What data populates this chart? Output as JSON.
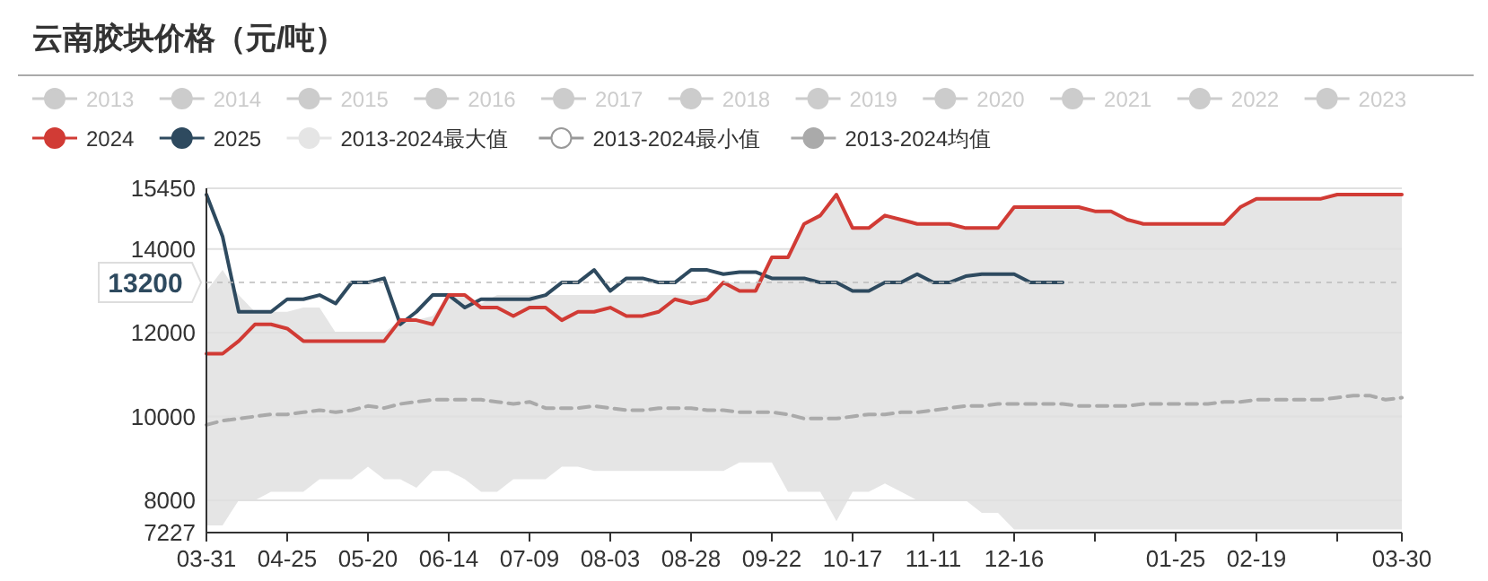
{
  "chart_data": {
    "type": "line",
    "title": "云南胶块价格（元/吨）",
    "categories": [
      "03-31",
      null,
      null,
      null,
      null,
      "04-25",
      null,
      null,
      null,
      null,
      "05-20",
      null,
      null,
      null,
      null,
      "06-14",
      null,
      null,
      null,
      null,
      "07-09",
      null,
      null,
      null,
      null,
      "08-03",
      null,
      null,
      null,
      null,
      "08-28",
      null,
      null,
      null,
      null,
      "09-22",
      null,
      null,
      null,
      null,
      "10-17",
      null,
      null,
      null,
      null,
      "11-11",
      null,
      null,
      null,
      null,
      "12-16",
      null,
      null,
      null,
      null,
      null,
      null,
      null,
      null,
      null,
      "01-25",
      null,
      null,
      null,
      null,
      "02-19",
      null,
      null,
      null,
      null,
      null,
      null,
      null,
      null,
      "03-30"
    ],
    "ylim": [
      7227,
      15450
    ],
    "yticks": [
      7227,
      8000,
      10000,
      12000,
      14000,
      15450
    ],
    "grid": "y",
    "legend": "top left",
    "series": [
      {
        "name": "2013",
        "color": "#cccccc",
        "values": [
          null,
          null,
          null,
          null,
          null,
          null,
          null,
          null,
          null,
          null,
          null,
          null,
          null,
          null,
          null,
          null,
          null,
          null,
          null,
          null,
          null,
          null,
          null,
          null,
          null,
          null,
          null,
          null,
          null,
          null,
          null,
          null,
          null,
          null,
          null,
          null,
          null,
          null,
          null,
          null,
          null,
          null,
          null,
          null,
          null,
          null,
          null,
          null,
          null,
          null,
          null,
          null,
          null,
          null,
          null,
          null,
          null,
          null,
          null,
          null,
          null,
          null,
          null,
          null,
          null,
          null,
          null,
          null,
          null,
          null,
          null,
          null,
          null,
          null,
          null
        ]
      },
      {
        "name": "2014",
        "color": "#cccccc",
        "values": [
          null,
          null,
          null,
          null,
          null,
          null,
          null,
          null,
          null,
          null,
          null,
          null,
          null,
          null,
          null,
          null,
          null,
          null,
          null,
          null,
          null,
          null,
          null,
          null,
          null,
          null,
          null,
          null,
          null,
          null,
          null,
          null,
          null,
          null,
          null,
          null,
          null,
          null,
          null,
          null,
          null,
          null,
          null,
          null,
          null,
          null,
          null,
          null,
          null,
          null,
          null,
          null,
          null,
          null,
          null,
          null,
          null,
          null,
          null,
          null,
          null,
          null,
          null,
          null,
          null,
          null,
          null,
          null,
          null,
          null,
          null,
          null,
          null,
          null,
          null
        ]
      },
      {
        "name": "2015",
        "color": "#cccccc",
        "values": [
          null,
          null,
          null,
          null,
          null,
          null,
          null,
          null,
          null,
          null,
          null,
          null,
          null,
          null,
          null,
          null,
          null,
          null,
          null,
          null,
          null,
          null,
          null,
          null,
          null,
          null,
          null,
          null,
          null,
          null,
          null,
          null,
          null,
          null,
          null,
          null,
          null,
          null,
          null,
          null,
          null,
          null,
          null,
          null,
          null,
          null,
          null,
          null,
          null,
          null,
          null,
          null,
          null,
          null,
          null,
          null,
          null,
          null,
          null,
          null,
          null,
          null,
          null,
          null,
          null,
          null,
          null,
          null,
          null,
          null,
          null,
          null,
          null,
          null,
          null
        ]
      },
      {
        "name": "2016",
        "color": "#cccccc",
        "values": [
          null,
          null,
          null,
          null,
          null,
          null,
          null,
          null,
          null,
          null,
          null,
          null,
          null,
          null,
          null,
          null,
          null,
          null,
          null,
          null,
          null,
          null,
          null,
          null,
          null,
          null,
          null,
          null,
          null,
          null,
          null,
          null,
          null,
          null,
          null,
          null,
          null,
          null,
          null,
          null,
          null,
          null,
          null,
          null,
          null,
          null,
          null,
          null,
          null,
          null,
          null,
          null,
          null,
          null,
          null,
          null,
          null,
          null,
          null,
          null,
          null,
          null,
          null,
          null,
          null,
          null,
          null,
          null,
          null,
          null,
          null,
          null,
          null,
          null,
          null
        ]
      },
      {
        "name": "2017",
        "color": "#cccccc",
        "values": [
          null,
          null,
          null,
          null,
          null,
          null,
          null,
          null,
          null,
          null,
          null,
          null,
          null,
          null,
          null,
          null,
          null,
          null,
          null,
          null,
          null,
          null,
          null,
          null,
          null,
          null,
          null,
          null,
          null,
          null,
          null,
          null,
          null,
          null,
          null,
          null,
          null,
          null,
          null,
          null,
          null,
          null,
          null,
          null,
          null,
          null,
          null,
          null,
          null,
          null,
          null,
          null,
          null,
          null,
          null,
          null,
          null,
          null,
          null,
          null,
          null,
          null,
          null,
          null,
          null,
          null,
          null,
          null,
          null,
          null,
          null,
          null,
          null,
          null,
          null
        ]
      },
      {
        "name": "2018",
        "color": "#cccccc",
        "values": [
          null,
          null,
          null,
          null,
          null,
          null,
          null,
          null,
          null,
          null,
          null,
          null,
          null,
          null,
          null,
          null,
          null,
          null,
          null,
          null,
          null,
          null,
          null,
          null,
          null,
          null,
          null,
          null,
          null,
          null,
          null,
          null,
          null,
          null,
          null,
          null,
          null,
          null,
          null,
          null,
          null,
          null,
          null,
          null,
          null,
          null,
          null,
          null,
          null,
          null,
          null,
          null,
          null,
          null,
          null,
          null,
          null,
          null,
          null,
          null,
          null,
          null,
          null,
          null,
          null,
          null,
          null,
          null,
          null,
          null,
          null,
          null,
          null,
          null,
          null
        ]
      },
      {
        "name": "2019",
        "color": "#cccccc",
        "values": [
          null,
          null,
          null,
          null,
          null,
          null,
          null,
          null,
          null,
          null,
          null,
          null,
          null,
          null,
          null,
          null,
          null,
          null,
          null,
          null,
          null,
          null,
          null,
          null,
          null,
          null,
          null,
          null,
          null,
          null,
          null,
          null,
          null,
          null,
          null,
          null,
          null,
          null,
          null,
          null,
          null,
          null,
          null,
          null,
          null,
          null,
          null,
          null,
          null,
          null,
          null,
          null,
          null,
          null,
          null,
          null,
          null,
          null,
          null,
          null,
          null,
          null,
          null,
          null,
          null,
          null,
          null,
          null,
          null,
          null,
          null,
          null,
          null,
          null,
          null
        ]
      },
      {
        "name": "2020",
        "color": "#cccccc",
        "values": [
          null,
          null,
          null,
          null,
          null,
          null,
          null,
          null,
          null,
          null,
          null,
          null,
          null,
          null,
          null,
          null,
          null,
          null,
          null,
          null,
          null,
          null,
          null,
          null,
          null,
          null,
          null,
          null,
          null,
          null,
          null,
          null,
          null,
          null,
          null,
          null,
          null,
          null,
          null,
          null,
          null,
          null,
          null,
          null,
          null,
          null,
          null,
          null,
          null,
          null,
          null,
          null,
          null,
          null,
          null,
          null,
          null,
          null,
          null,
          null,
          null,
          null,
          null,
          null,
          null,
          null,
          null,
          null,
          null,
          null,
          null,
          null,
          null,
          null,
          null
        ]
      },
      {
        "name": "2021",
        "color": "#cccccc",
        "values": [
          null,
          null,
          null,
          null,
          null,
          null,
          null,
          null,
          null,
          null,
          null,
          null,
          null,
          null,
          null,
          null,
          null,
          null,
          null,
          null,
          null,
          null,
          null,
          null,
          null,
          null,
          null,
          null,
          null,
          null,
          null,
          null,
          null,
          null,
          null,
          null,
          null,
          null,
          null,
          null,
          null,
          null,
          null,
          null,
          null,
          null,
          null,
          null,
          null,
          null,
          null,
          null,
          null,
          null,
          null,
          null,
          null,
          null,
          null,
          null,
          null,
          null,
          null,
          null,
          null,
          null,
          null,
          null,
          null,
          null,
          null,
          null,
          null,
          null,
          null
        ]
      },
      {
        "name": "2022",
        "color": "#cccccc",
        "values": [
          null,
          null,
          null,
          null,
          null,
          null,
          null,
          null,
          null,
          null,
          null,
          null,
          null,
          null,
          null,
          null,
          null,
          null,
          null,
          null,
          null,
          null,
          null,
          null,
          null,
          null,
          null,
          null,
          null,
          null,
          null,
          null,
          null,
          null,
          null,
          null,
          null,
          null,
          null,
          null,
          null,
          null,
          null,
          null,
          null,
          null,
          null,
          null,
          null,
          null,
          null,
          null,
          null,
          null,
          null,
          null,
          null,
          null,
          null,
          null,
          null,
          null,
          null,
          null,
          null,
          null,
          null,
          null,
          null,
          null,
          null,
          null,
          null,
          null,
          null
        ]
      },
      {
        "name": "2023",
        "color": "#cccccc",
        "values": [
          null,
          null,
          null,
          null,
          null,
          null,
          null,
          null,
          null,
          null,
          null,
          null,
          null,
          null,
          null,
          null,
          null,
          null,
          null,
          null,
          null,
          null,
          null,
          null,
          null,
          null,
          null,
          null,
          null,
          null,
          null,
          null,
          null,
          null,
          null,
          null,
          null,
          null,
          null,
          null,
          null,
          null,
          null,
          null,
          null,
          null,
          null,
          null,
          null,
          null,
          null,
          null,
          null,
          null,
          null,
          null,
          null,
          null,
          null,
          null,
          null,
          null,
          null,
          null,
          null,
          null,
          null,
          null,
          null,
          null,
          null,
          null,
          null,
          null,
          null
        ]
      },
      {
        "name": "2024",
        "color": "#d13b35",
        "values": [
          11500,
          11500,
          11800,
          12200,
          12200,
          12100,
          11800,
          11800,
          11800,
          11800,
          11800,
          11800,
          12300,
          12300,
          12200,
          12900,
          12900,
          12600,
          12600,
          12400,
          12600,
          12600,
          12300,
          12500,
          12500,
          12600,
          12400,
          12400,
          12500,
          12800,
          12700,
          12800,
          13200,
          13000,
          13000,
          13800,
          13800,
          14600,
          14800,
          15300,
          14500,
          14500,
          14800,
          14700,
          14600,
          14600,
          14600,
          14500,
          14500,
          14500,
          15000,
          15000,
          15000,
          15000,
          15000,
          14900,
          14900,
          14700,
          14600,
          14600,
          14600,
          14600,
          14600,
          14600,
          15000,
          15200,
          15200,
          15200,
          15200,
          15200,
          15300,
          15300,
          15300,
          15300,
          15300
        ]
      },
      {
        "name": "2025",
        "color": "#2e4a5f",
        "values": [
          15300,
          14300,
          12500,
          12500,
          12500,
          12800,
          12800,
          12900,
          12700,
          13200,
          13200,
          13300,
          12200,
          12500,
          12900,
          12900,
          12600,
          12800,
          12800,
          12800,
          12800,
          12900,
          13200,
          13200,
          13500,
          13000,
          13300,
          13300,
          13200,
          13200,
          13500,
          13500,
          13400,
          13450,
          13450,
          13300,
          13300,
          13300,
          13200,
          13200,
          13000,
          13000,
          13200,
          13200,
          13400,
          13200,
          13200,
          13350,
          13400,
          13400,
          13400,
          13200,
          13200,
          13200,
          null,
          null,
          null,
          null,
          null,
          null,
          null,
          null,
          null,
          null,
          null,
          null,
          null,
          null,
          null,
          null,
          null,
          null,
          null,
          null,
          null
        ]
      },
      {
        "name": "2013-2024最大值",
        "type": "area",
        "color": "#e5e5e5",
        "values": [
          13000,
          13500,
          12900,
          12500,
          12500,
          12500,
          12600,
          12600,
          12000,
          12000,
          12000,
          12000,
          12300,
          12300,
          12400,
          12900,
          12900,
          12700,
          12900,
          12900,
          12900,
          12900,
          12900,
          12900,
          12900,
          12900,
          12900,
          12900,
          12900,
          12900,
          12900,
          12900,
          13200,
          13200,
          13200,
          13800,
          13800,
          14600,
          14800,
          15300,
          14500,
          14500,
          14800,
          14700,
          14600,
          14600,
          14600,
          14500,
          14500,
          14500,
          15000,
          15000,
          15000,
          15000,
          15000,
          14900,
          14900,
          14700,
          14600,
          14600,
          14600,
          14600,
          14600,
          14600,
          15000,
          15200,
          15200,
          15200,
          15200,
          15200,
          15300,
          15300,
          15300,
          15300,
          15300
        ]
      },
      {
        "name": "2013-2024最小值",
        "type": "area",
        "color": "#ffffff",
        "values": [
          7400,
          7400,
          8000,
          8000,
          8200,
          8200,
          8200,
          8500,
          8500,
          8500,
          8800,
          8500,
          8500,
          8300,
          8700,
          8700,
          8500,
          8200,
          8200,
          8500,
          8500,
          8500,
          8800,
          8800,
          8700,
          8700,
          8700,
          8700,
          8700,
          8700,
          8700,
          8700,
          8700,
          8900,
          8900,
          8900,
          8200,
          8200,
          8200,
          7500,
          8200,
          8200,
          8400,
          8200,
          8000,
          8000,
          8000,
          8000,
          7700,
          7700,
          7300,
          7300,
          7300,
          7300,
          7300,
          7300,
          7300,
          7300,
          7300,
          7300,
          7300,
          7300,
          7300,
          7300,
          7300,
          7300,
          7300,
          7300,
          7300,
          7300,
          7300,
          7300,
          7300,
          7300,
          7300
        ]
      },
      {
        "name": "2013-2024均值",
        "line_style": "dashed",
        "color": "#aaaaaa",
        "values": [
          9800,
          9900,
          9950,
          10000,
          10050,
          10050,
          10100,
          10150,
          10100,
          10150,
          10250,
          10200,
          10300,
          10350,
          10400,
          10400,
          10400,
          10400,
          10350,
          10300,
          10350,
          10200,
          10200,
          10200,
          10250,
          10200,
          10150,
          10150,
          10200,
          10200,
          10200,
          10150,
          10150,
          10100,
          10100,
          10100,
          10050,
          9950,
          9950,
          9950,
          10000,
          10050,
          10050,
          10100,
          10100,
          10150,
          10200,
          10250,
          10250,
          10300,
          10300,
          10300,
          10300,
          10300,
          10250,
          10250,
          10250,
          10250,
          10300,
          10300,
          10300,
          10300,
          10300,
          10350,
          10350,
          10400,
          10400,
          10400,
          10400,
          10400,
          10450,
          10500,
          10500,
          10400,
          10450
        ]
      }
    ],
    "ref_lines": [
      {
        "axis": "y",
        "value": 13200,
        "label": "13200"
      }
    ]
  }
}
